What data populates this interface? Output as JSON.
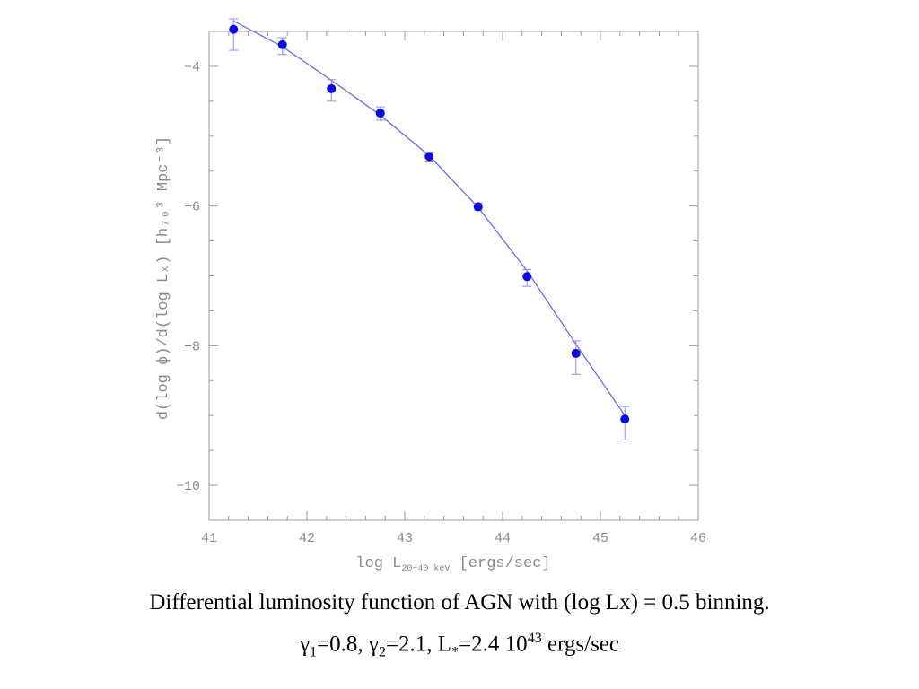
{
  "chart_data": {
    "type": "scatter",
    "xlim": [
      41,
      46
    ],
    "ylim": [
      -10.5,
      -3.5
    ],
    "x_ticks": [
      "41",
      "42",
      "43",
      "44",
      "45",
      "46"
    ],
    "y_ticks": [
      "−4",
      "−6",
      "−8",
      "−10"
    ],
    "x_tick_values": [
      41,
      42,
      43,
      44,
      45,
      46
    ],
    "y_tick_values": [
      -4,
      -6,
      -8,
      -10
    ],
    "xlabel": {
      "main": "log L",
      "sub": "20−40 keV",
      "unit": " [ergs/sec]"
    },
    "ylabel": {
      "text": "d(log ϕ)/d(log Lₓ) [h₇₀³ Mpc⁻³]"
    },
    "points": [
      {
        "x": 41.25,
        "y": -3.47,
        "err_up": 0.15,
        "err_down": 0.3
      },
      {
        "x": 41.75,
        "y": -3.69,
        "err_up": 0.1,
        "err_down": 0.14
      },
      {
        "x": 42.25,
        "y": -4.32,
        "err_up": 0.13,
        "err_down": 0.18
      },
      {
        "x": 42.75,
        "y": -4.67,
        "err_up": 0.09,
        "err_down": 0.1
      },
      {
        "x": 43.25,
        "y": -5.29,
        "err_up": 0.06,
        "err_down": 0.08
      },
      {
        "x": 43.75,
        "y": -6.01,
        "err_up": 0.05,
        "err_down": 0.05
      },
      {
        "x": 44.25,
        "y": -7.01,
        "err_up": 0.1,
        "err_down": 0.14
      },
      {
        "x": 44.75,
        "y": -8.11,
        "err_up": 0.18,
        "err_down": 0.3
      },
      {
        "x": 45.25,
        "y": -9.05,
        "err_up": 0.18,
        "err_down": 0.3
      }
    ],
    "fit_line": {
      "x": [
        41.25,
        41.75,
        42.25,
        42.75,
        43.25,
        43.75,
        44.25,
        44.75,
        45.25
      ],
      "y": [
        -3.35,
        -3.72,
        -4.2,
        -4.7,
        -5.28,
        -6.02,
        -6.93,
        -7.98,
        -9.0
      ]
    },
    "grid": false,
    "colors": {
      "points": "#0a0ae0",
      "fit": "#6a6af2",
      "errorbars": "#8c8cf0",
      "axes": "#9a9a9a"
    }
  },
  "caption": {
    "line1": "Differential luminosity function of AGN with (log Lx) = 0.5 binning.",
    "gamma1_sym": "γ",
    "gamma1_sub": "1",
    "gamma1_val": "=0.8, ",
    "gamma2_sym": "γ",
    "gamma2_sub": "2",
    "gamma2_val": "=2.1, L",
    "lstar_sub": "*",
    "lstar_val": "=2.4 10",
    "exp": "43",
    "unit": " ergs/sec"
  }
}
